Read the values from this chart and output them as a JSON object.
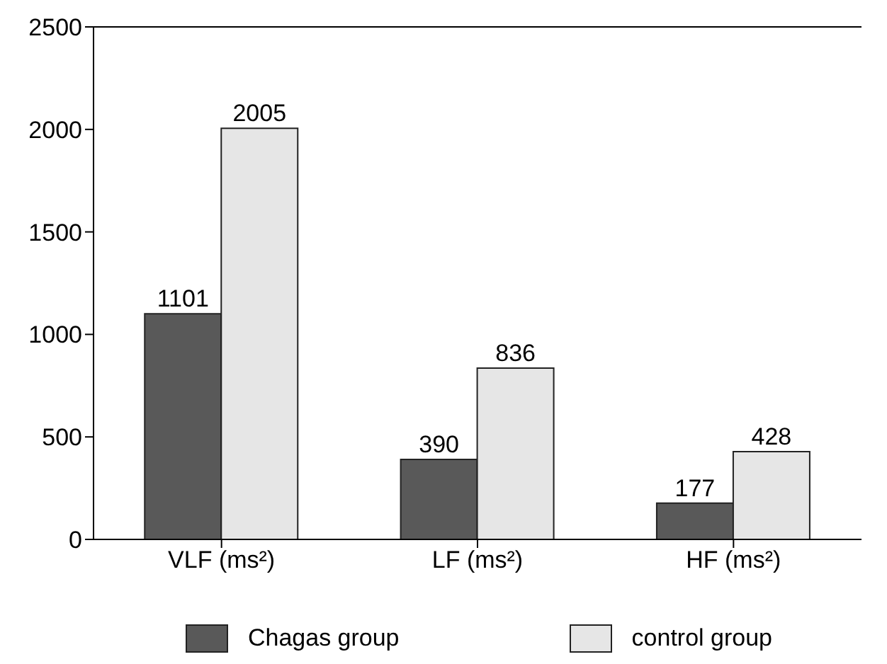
{
  "chart_data": {
    "type": "bar",
    "categories": [
      "VLF (ms²)",
      "LF (ms²)",
      "HF (ms²)"
    ],
    "series": [
      {
        "name": "Chagas group",
        "color": "#595959",
        "values": [
          1101,
          390,
          177
        ]
      },
      {
        "name": "control group",
        "color": "#e6e6e6",
        "values": [
          2005,
          836,
          428
        ]
      }
    ],
    "ylim": [
      0,
      2500
    ],
    "yticks": [
      0,
      500,
      1000,
      1500,
      2000,
      2500
    ],
    "data_labels": true,
    "legend": "bottom",
    "grid": false
  }
}
